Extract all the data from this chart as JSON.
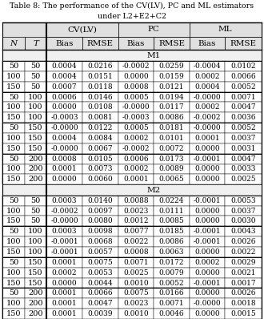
{
  "title_line1": "Table 8: The performance of the CV(LV), PC and ML estimators",
  "title_line2": "under L2+E2+C2",
  "col_headers": [
    "CV(LV)",
    "PC",
    "ML"
  ],
  "sub_headers": [
    "Bias",
    "RMSE",
    "Bias",
    "RMSE",
    "Bias",
    "RMSE"
  ],
  "m1_label": "M1",
  "m2_label": "M2",
  "m1_data": [
    [
      50,
      50,
      "0.0004",
      "0.0216",
      "-0.0002",
      "0.0259",
      "-0.0004",
      "0.0102"
    ],
    [
      100,
      50,
      "0.0004",
      "0.0151",
      "0.0000",
      "0.0159",
      "0.0002",
      "0.0066"
    ],
    [
      150,
      50,
      "0.0007",
      "0.0118",
      "0.0008",
      "0.0121",
      "0.0004",
      "0.0052"
    ],
    [
      50,
      100,
      "0.0006",
      "0.0146",
      "0.0005",
      "0.0194",
      "-0.0000",
      "0.0071"
    ],
    [
      100,
      100,
      "0.0000",
      "0.0108",
      "-0.0000",
      "0.0117",
      "0.0002",
      "0.0047"
    ],
    [
      150,
      100,
      "-0.0003",
      "0.0081",
      "-0.0003",
      "0.0086",
      "-0.0002",
      "0.0036"
    ],
    [
      50,
      150,
      "-0.0000",
      "0.0122",
      "0.0005",
      "0.0181",
      "-0.0000",
      "0.0052"
    ],
    [
      100,
      150,
      "0.0004",
      "0.0084",
      "0.0002",
      "0.0101",
      "0.0001",
      "0.0037"
    ],
    [
      150,
      150,
      "-0.0000",
      "0.0067",
      "-0.0002",
      "0.0072",
      "0.0000",
      "0.0031"
    ],
    [
      50,
      200,
      "0.0008",
      "0.0105",
      "0.0006",
      "0.0173",
      "-0.0001",
      "0.0047"
    ],
    [
      100,
      200,
      "0.0001",
      "0.0073",
      "0.0002",
      "0.0089",
      "0.0000",
      "0.0033"
    ],
    [
      150,
      200,
      "0.0000",
      "0.0060",
      "0.0001",
      "0.0065",
      "0.0000",
      "0.0025"
    ]
  ],
  "m2_data": [
    [
      50,
      50,
      "0.0003",
      "0.0140",
      "0.0088",
      "0.0224",
      "-0.0001",
      "0.0053"
    ],
    [
      100,
      50,
      "-0.0002",
      "0.0097",
      "0.0023",
      "0.0111",
      "0.0000",
      "0.0037"
    ],
    [
      150,
      50,
      "-0.0000",
      "0.0080",
      "0.0012",
      "0.0085",
      "0.0000",
      "0.0030"
    ],
    [
      50,
      100,
      "0.0003",
      "0.0098",
      "0.0077",
      "0.0185",
      "-0.0001",
      "0.0043"
    ],
    [
      100,
      100,
      "-0.0001",
      "0.0068",
      "0.0022",
      "0.0086",
      "-0.0001",
      "0.0026"
    ],
    [
      150,
      100,
      "-0.0001",
      "0.0057",
      "0.0008",
      "0.0063",
      "0.0000",
      "0.0022"
    ],
    [
      50,
      150,
      "0.0001",
      "0.0075",
      "0.0071",
      "0.0172",
      "0.0002",
      "0.0029"
    ],
    [
      100,
      150,
      "0.0002",
      "0.0053",
      "0.0025",
      "0.0079",
      "0.0000",
      "0.0021"
    ],
    [
      150,
      150,
      "0.0000",
      "0.0044",
      "0.0010",
      "0.0052",
      "-0.0001",
      "0.0017"
    ],
    [
      50,
      200,
      "0.0001",
      "0.0066",
      "0.0075",
      "0.0166",
      "0.0000",
      "0.0026"
    ],
    [
      100,
      200,
      "0.0001",
      "0.0047",
      "0.0023",
      "0.0071",
      "-0.0000",
      "0.0018"
    ],
    [
      150,
      200,
      "0.0001",
      "0.0039",
      "0.0010",
      "0.0046",
      "0.0000",
      "0.0015"
    ]
  ],
  "background_color": "#ffffff",
  "font_size": 7.0,
  "header_font_size": 7.5
}
